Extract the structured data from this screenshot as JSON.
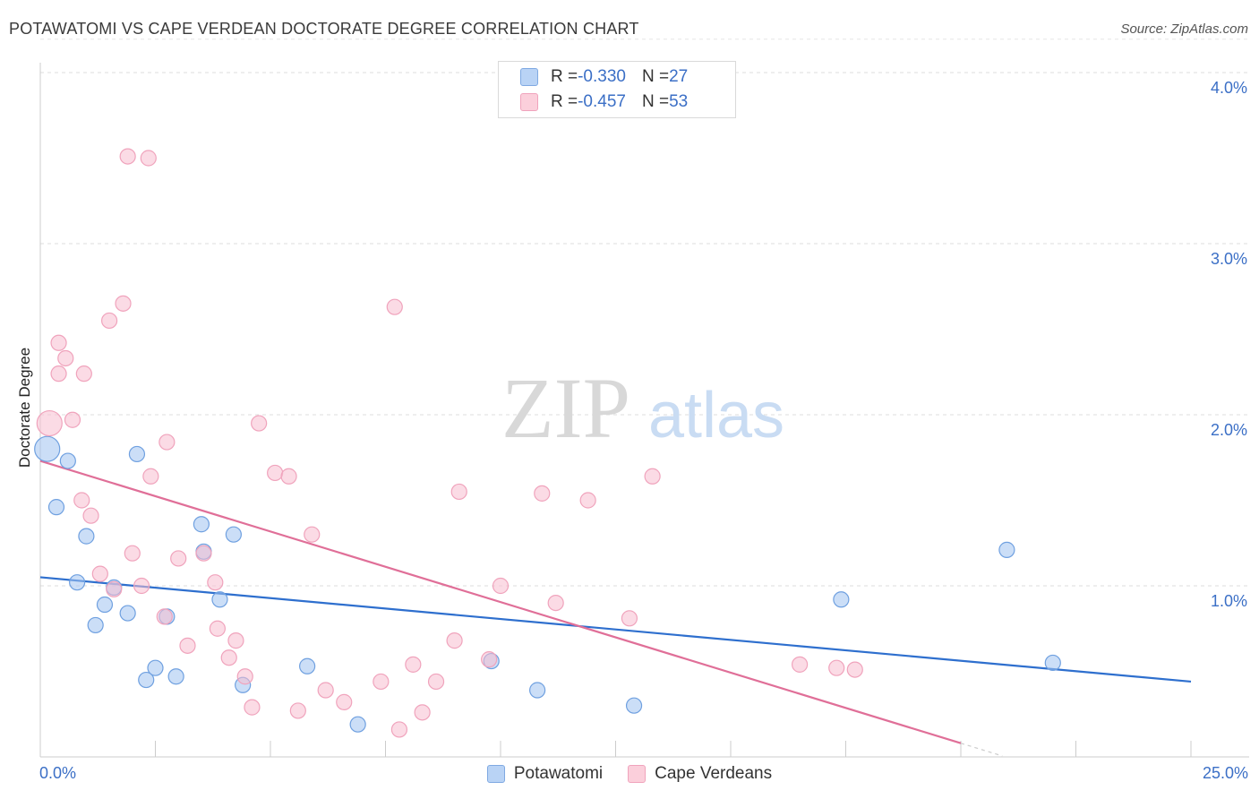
{
  "title": "POTAWATOMI VS CAPE VERDEAN DOCTORATE DEGREE CORRELATION CHART",
  "source": "Source: ZipAtlas.com",
  "watermark": {
    "zip": "ZIP",
    "atlas": "atlas"
  },
  "legend_top": [
    {
      "r_label": "R = ",
      "r_value": "-0.330",
      "n_label": "N = ",
      "n_value": "27"
    },
    {
      "r_label": "R = ",
      "r_value": "-0.457",
      "n_label": "N = ",
      "n_value": "53"
    }
  ],
  "chart_data": {
    "type": "scatter",
    "title": "POTAWATOMI VS CAPE VERDEAN DOCTORATE DEGREE CORRELATION CHART",
    "xlabel": "",
    "ylabel": "Doctorate Degree",
    "xlim": [
      0,
      25
    ],
    "ylim": [
      0,
      4.2
    ],
    "x_tick_labels": [
      "0.0%",
      "25.0%"
    ],
    "y_ticks": [
      1,
      2,
      3,
      4
    ],
    "y_tick_labels": [
      "1.0%",
      "2.0%",
      "3.0%",
      "4.0%"
    ],
    "grid": "horizontal dashed",
    "legend": "bottom-center",
    "colors": {
      "Potawatomi": "#6fa0e0",
      "Cape Verdeans": "#f0a3bc",
      "pot_line": "#2e6fce",
      "cv_line": "#e06f98"
    },
    "series": [
      {
        "name": "Potawatomi",
        "points": [
          [
            0.15,
            1.8
          ],
          [
            0.6,
            1.73
          ],
          [
            0.35,
            1.46
          ],
          [
            1.0,
            1.29
          ],
          [
            0.8,
            1.02
          ],
          [
            1.6,
            0.99
          ],
          [
            1.4,
            0.89
          ],
          [
            1.9,
            0.84
          ],
          [
            2.75,
            0.82
          ],
          [
            1.2,
            0.77
          ],
          [
            2.1,
            1.77
          ],
          [
            3.5,
            1.36
          ],
          [
            3.55,
            1.2
          ],
          [
            4.2,
            1.3
          ],
          [
            3.9,
            0.92
          ],
          [
            2.5,
            0.52
          ],
          [
            2.3,
            0.45
          ],
          [
            2.95,
            0.47
          ],
          [
            4.4,
            0.42
          ],
          [
            5.8,
            0.53
          ],
          [
            9.8,
            0.56
          ],
          [
            6.9,
            0.19
          ],
          [
            10.8,
            0.39
          ],
          [
            12.9,
            0.3
          ],
          [
            17.4,
            0.92
          ],
          [
            21.0,
            1.21
          ],
          [
            22.0,
            0.55
          ]
        ],
        "trend": {
          "x": [
            0,
            25
          ],
          "y": [
            1.05,
            0.44
          ]
        }
      },
      {
        "name": "Cape Verdeans",
        "points": [
          [
            0.2,
            1.95
          ],
          [
            0.4,
            2.24
          ],
          [
            0.4,
            2.42
          ],
          [
            0.55,
            2.33
          ],
          [
            0.7,
            1.97
          ],
          [
            0.95,
            2.24
          ],
          [
            1.5,
            2.55
          ],
          [
            1.8,
            2.65
          ],
          [
            1.9,
            3.51
          ],
          [
            2.35,
            3.5
          ],
          [
            0.9,
            1.5
          ],
          [
            1.1,
            1.41
          ],
          [
            1.3,
            1.07
          ],
          [
            1.6,
            0.98
          ],
          [
            2.0,
            1.19
          ],
          [
            2.2,
            1.0
          ],
          [
            2.4,
            1.64
          ],
          [
            2.75,
            1.84
          ],
          [
            2.7,
            0.82
          ],
          [
            3.0,
            1.16
          ],
          [
            3.2,
            0.65
          ],
          [
            3.55,
            1.19
          ],
          [
            3.8,
            1.02
          ],
          [
            3.85,
            0.75
          ],
          [
            4.1,
            0.58
          ],
          [
            4.25,
            0.68
          ],
          [
            4.45,
            0.47
          ],
          [
            4.6,
            0.29
          ],
          [
            4.75,
            1.95
          ],
          [
            5.1,
            1.66
          ],
          [
            5.4,
            1.64
          ],
          [
            5.6,
            0.27
          ],
          [
            5.9,
            1.3
          ],
          [
            6.2,
            0.39
          ],
          [
            6.6,
            0.32
          ],
          [
            7.4,
            0.44
          ],
          [
            7.7,
            2.63
          ],
          [
            7.8,
            0.16
          ],
          [
            8.1,
            0.54
          ],
          [
            8.3,
            0.26
          ],
          [
            8.6,
            0.44
          ],
          [
            9.0,
            0.68
          ],
          [
            9.1,
            1.55
          ],
          [
            9.75,
            0.57
          ],
          [
            10.0,
            1.0
          ],
          [
            10.9,
            1.54
          ],
          [
            11.2,
            0.9
          ],
          [
            11.9,
            1.5
          ],
          [
            12.8,
            0.81
          ],
          [
            13.3,
            1.64
          ],
          [
            16.5,
            0.54
          ],
          [
            17.3,
            0.52
          ],
          [
            17.7,
            0.51
          ]
        ],
        "trend": {
          "x": [
            0,
            20.0
          ],
          "y": [
            1.73,
            0.08
          ]
        }
      }
    ]
  },
  "legend_bottom": [
    {
      "label": "Potawatomi"
    },
    {
      "label": "Cape Verdeans"
    }
  ]
}
